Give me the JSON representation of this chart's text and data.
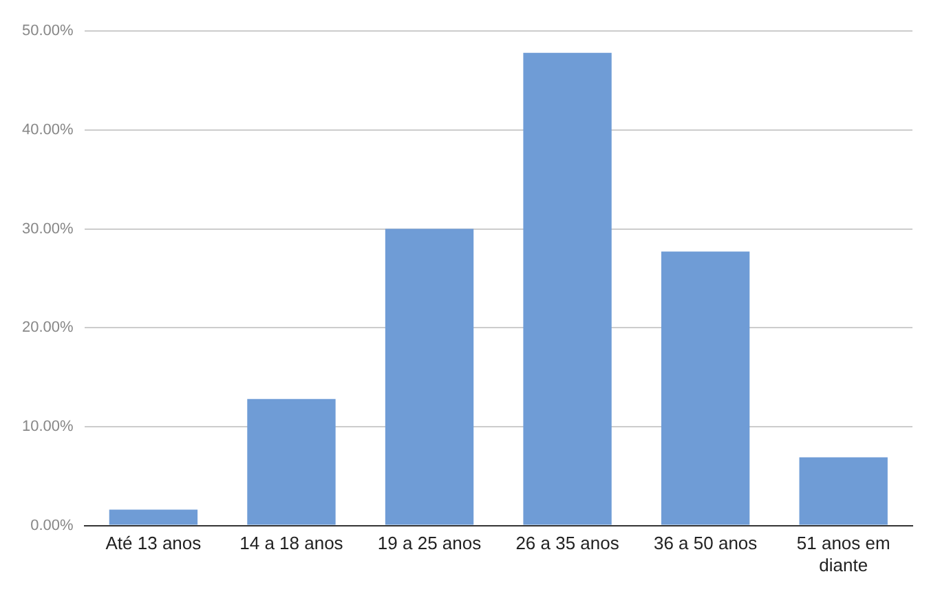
{
  "chart_data": {
    "type": "bar",
    "categories": [
      "Até 13 anos",
      "14 a 18 anos",
      "19 a 25 anos",
      "26 a 35 anos",
      "36 a 50 anos",
      "51 anos em diante"
    ],
    "values": [
      1.6,
      12.8,
      30.0,
      47.8,
      27.7,
      6.9
    ],
    "color": "#6f9cd6",
    "ylim": [
      0,
      50
    ],
    "yticks": [
      {
        "value": 0,
        "label": "0.00%"
      },
      {
        "value": 10,
        "label": "10.00%"
      },
      {
        "value": 20,
        "label": "20.00%"
      },
      {
        "value": 30,
        "label": "30.00%"
      },
      {
        "value": 40,
        "label": "40.00%"
      },
      {
        "value": 50,
        "label": "50.00%"
      }
    ],
    "grid": "y"
  }
}
